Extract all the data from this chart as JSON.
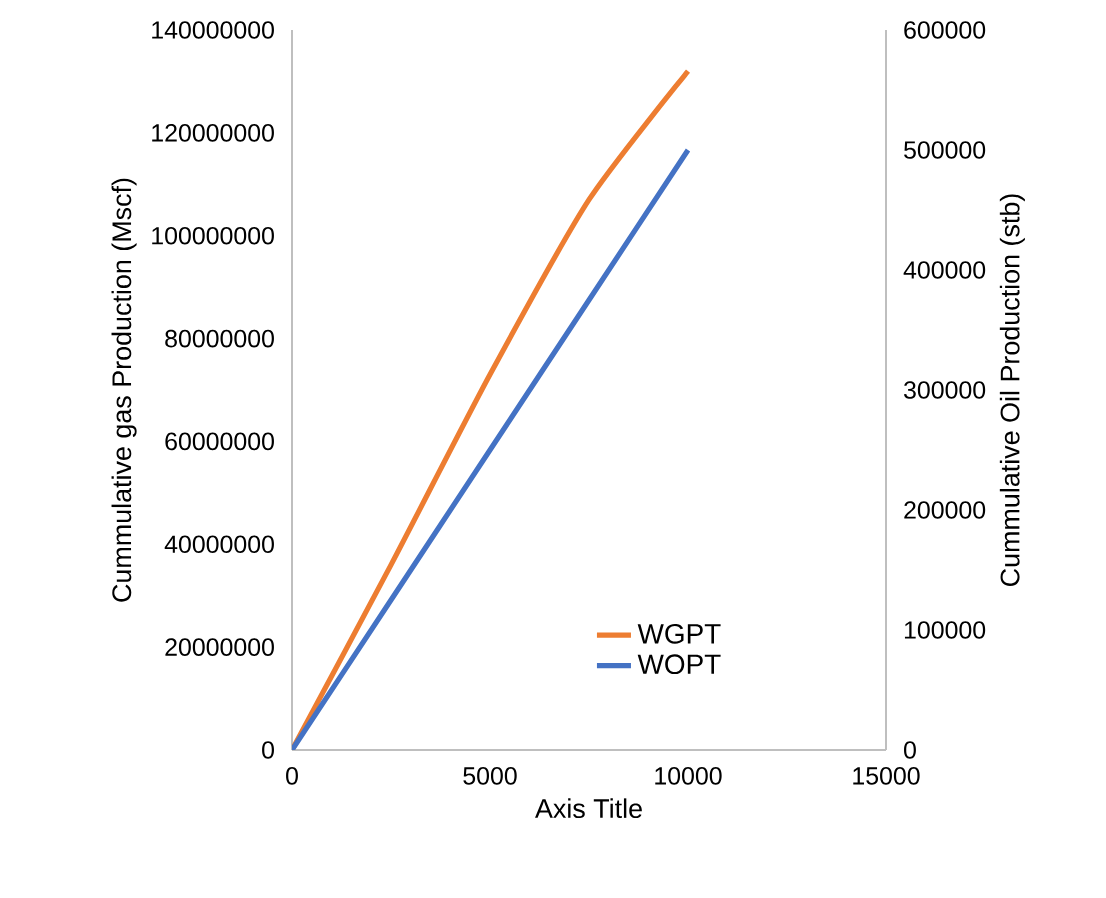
{
  "chart_data": {
    "type": "line",
    "xlabel": "Axis Title",
    "ylabel": "Cummulative gas Production (Mscf)",
    "y2label": "Cummulative Oil Production (stb)",
    "x": [
      0,
      2500,
      5000,
      7500,
      10000
    ],
    "series": [
      {
        "name": "WGPT",
        "color": "#ed7d31",
        "values": [
          0,
          36000000,
          73000000,
          107000000,
          132000000
        ]
      },
      {
        "name": "WOPT",
        "color": "#4472c4",
        "axis": "y2",
        "values": [
          0,
          125000,
          250000,
          375000,
          500000
        ]
      }
    ],
    "xlim": [
      0,
      15000
    ],
    "xticks": [
      0,
      5000,
      10000,
      15000
    ],
    "ylim": [
      0,
      140000000
    ],
    "yticks": [
      0,
      20000000,
      40000000,
      60000000,
      80000000,
      100000000,
      120000000,
      140000000
    ],
    "y2lim": [
      0,
      600000
    ],
    "y2ticks": [
      0,
      100000,
      200000,
      300000,
      400000,
      500000,
      600000
    ],
    "grid": false,
    "legend": "bottom right",
    "marker": "none",
    "line_style": "solid"
  }
}
